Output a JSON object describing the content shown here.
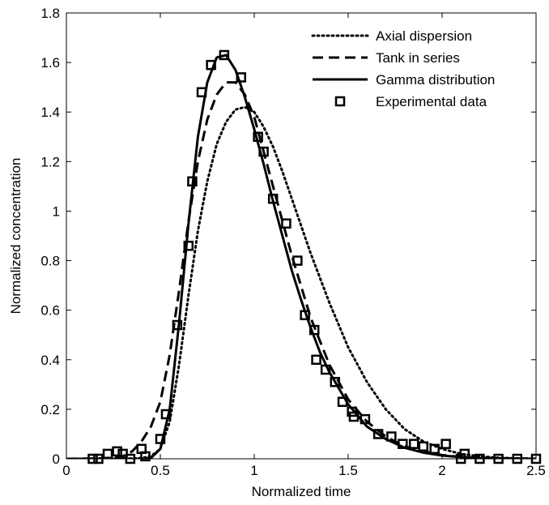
{
  "chart_data": {
    "type": "line",
    "xlabel": "Normalized time",
    "ylabel": "Normalized concentration",
    "xlim": [
      0,
      2.5
    ],
    "ylim": [
      0,
      1.8
    ],
    "xticks": [
      "0",
      "0.5",
      "1",
      "1.5",
      "2",
      "2.5"
    ],
    "yticks": [
      "0",
      "0.2",
      "0.4",
      "0.6",
      "0.8",
      "1",
      "1.2",
      "1.4",
      "1.6",
      "1.8"
    ],
    "grid": false,
    "legend_position": "top-right",
    "series": [
      {
        "name": "Axial dispersion",
        "style": "dotted",
        "x": [
          0,
          0.3,
          0.4,
          0.45,
          0.5,
          0.55,
          0.6,
          0.65,
          0.7,
          0.75,
          0.8,
          0.85,
          0.9,
          0.95,
          1.0,
          1.05,
          1.1,
          1.15,
          1.2,
          1.3,
          1.4,
          1.5,
          1.6,
          1.7,
          1.8,
          1.9,
          2.0,
          2.1,
          2.2,
          2.3,
          2.5
        ],
        "y": [
          0,
          0,
          0.003,
          0.01,
          0.04,
          0.15,
          0.38,
          0.66,
          0.92,
          1.12,
          1.27,
          1.36,
          1.41,
          1.42,
          1.4,
          1.34,
          1.26,
          1.16,
          1.05,
          0.83,
          0.63,
          0.45,
          0.31,
          0.2,
          0.12,
          0.07,
          0.04,
          0.02,
          0.01,
          0.004,
          0
        ]
      },
      {
        "name": "Tank in series",
        "style": "dashed",
        "x": [
          0,
          0.2,
          0.3,
          0.35,
          0.4,
          0.45,
          0.5,
          0.55,
          0.6,
          0.65,
          0.7,
          0.75,
          0.8,
          0.85,
          0.9,
          0.95,
          1.0,
          1.05,
          1.1,
          1.15,
          1.2,
          1.3,
          1.4,
          1.5,
          1.6,
          1.7,
          1.8,
          1.9,
          2.0,
          2.1,
          2.2,
          2.5
        ],
        "y": [
          0,
          0.002,
          0.01,
          0.03,
          0.07,
          0.13,
          0.23,
          0.42,
          0.68,
          0.96,
          1.2,
          1.37,
          1.47,
          1.52,
          1.52,
          1.47,
          1.38,
          1.24,
          1.1,
          0.96,
          0.82,
          0.57,
          0.38,
          0.24,
          0.15,
          0.09,
          0.05,
          0.03,
          0.015,
          0.008,
          0.004,
          0
        ]
      },
      {
        "name": "Gamma distribution",
        "style": "solid",
        "x": [
          0,
          0.4,
          0.45,
          0.5,
          0.55,
          0.6,
          0.65,
          0.7,
          0.75,
          0.8,
          0.85,
          0.9,
          0.95,
          1.0,
          1.05,
          1.1,
          1.15,
          1.2,
          1.25,
          1.3,
          1.35,
          1.4,
          1.5,
          1.6,
          1.7,
          1.8,
          1.9,
          2.0,
          2.1,
          2.2,
          2.5
        ],
        "y": [
          0,
          0,
          0.003,
          0.04,
          0.2,
          0.55,
          0.95,
          1.3,
          1.52,
          1.62,
          1.63,
          1.57,
          1.46,
          1.33,
          1.19,
          1.04,
          0.9,
          0.76,
          0.64,
          0.53,
          0.43,
          0.35,
          0.22,
          0.13,
          0.08,
          0.045,
          0.025,
          0.013,
          0.007,
          0.003,
          0
        ]
      },
      {
        "name": "Experimental data",
        "style": "markers",
        "x": [
          0.14,
          0.17,
          0.22,
          0.27,
          0.3,
          0.34,
          0.4,
          0.42,
          0.5,
          0.53,
          0.59,
          0.65,
          0.67,
          0.72,
          0.77,
          0.84,
          0.93,
          1.02,
          1.05,
          1.1,
          1.17,
          1.23,
          1.27,
          1.32,
          1.33,
          1.38,
          1.43,
          1.47,
          1.52,
          1.53,
          1.59,
          1.66,
          1.73,
          1.79,
          1.85,
          1.9,
          1.96,
          2.02,
          2.1,
          2.12,
          2.2,
          2.3,
          2.4,
          2.5
        ],
        "y": [
          0,
          0,
          0.02,
          0.03,
          0.02,
          0,
          0.04,
          0.01,
          0.08,
          0.18,
          0.54,
          0.86,
          1.12,
          1.48,
          1.59,
          1.63,
          1.54,
          1.3,
          1.24,
          1.05,
          0.95,
          0.8,
          0.58,
          0.52,
          0.4,
          0.36,
          0.31,
          0.23,
          0.19,
          0.17,
          0.16,
          0.1,
          0.09,
          0.06,
          0.06,
          0.05,
          0.04,
          0.06,
          0,
          0.02,
          0,
          0,
          0,
          0
        ]
      }
    ]
  }
}
